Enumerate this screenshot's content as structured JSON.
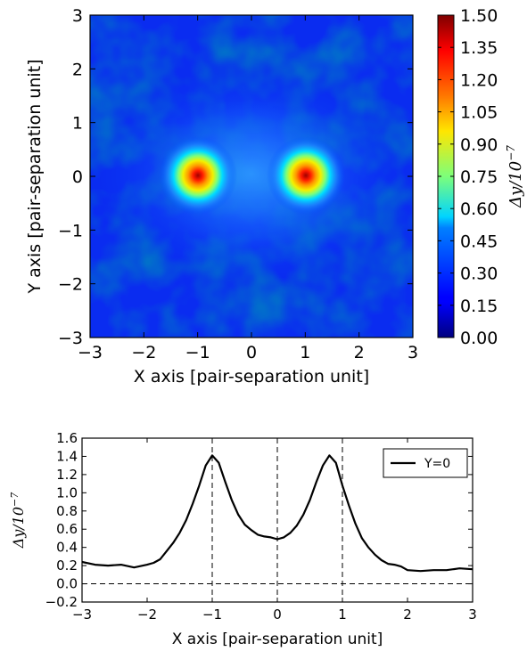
{
  "chart_data": [
    {
      "type": "heatmap",
      "xlabel": "X axis [pair-separation unit]",
      "ylabel": "Y axis [pair-separation unit]",
      "xlim": [
        -3,
        3
      ],
      "ylim": [
        -3,
        3
      ],
      "xticks": [
        "−3",
        "−2",
        "−1",
        "0",
        "1",
        "2",
        "3"
      ],
      "yticks": [
        "−3",
        "−2",
        "−1",
        "0",
        "1",
        "2",
        "3"
      ],
      "colormap": "jet",
      "colorbar": {
        "label_main": "Δy/10",
        "label_exp": "−7",
        "range": [
          0,
          1.5
        ],
        "ticks": [
          "0.00",
          "0.15",
          "0.30",
          "0.45",
          "0.60",
          "0.75",
          "0.90",
          "1.05",
          "1.20",
          "1.35",
          "1.50"
        ]
      },
      "peaks": [
        {
          "x": -1,
          "y": 0,
          "value": 1.45
        },
        {
          "x": 1,
          "y": 0,
          "value": 1.45
        }
      ],
      "background_level": 0.15
    },
    {
      "type": "line",
      "xlabel": "X axis [pair-separation unit]",
      "ylabel_main": "Δy/10",
      "ylabel_exp": "−7",
      "xlim": [
        -3,
        3
      ],
      "ylim": [
        -0.2,
        1.6
      ],
      "xticks": [
        "−3",
        "−2",
        "−1",
        "0",
        "1",
        "2",
        "3"
      ],
      "yticks": [
        "−0.2",
        "0.0",
        "0.2",
        "0.4",
        "0.6",
        "0.8",
        "1.0",
        "1.2",
        "1.4",
        "1.6"
      ],
      "vlines": [
        -1,
        0,
        1
      ],
      "hline": 0,
      "legend": "top-right",
      "series": [
        {
          "name": "Y=0",
          "color": "#000000",
          "x": [
            -3.0,
            -2.8,
            -2.6,
            -2.4,
            -2.2,
            -2.0,
            -1.9,
            -1.8,
            -1.7,
            -1.6,
            -1.5,
            -1.4,
            -1.3,
            -1.2,
            -1.1,
            -1.0,
            -0.9,
            -0.8,
            -0.7,
            -0.6,
            -0.5,
            -0.4,
            -0.3,
            -0.2,
            -0.1,
            0.0,
            0.1,
            0.2,
            0.3,
            0.4,
            0.5,
            0.6,
            0.7,
            0.8,
            0.9,
            1.0,
            1.1,
            1.2,
            1.3,
            1.4,
            1.5,
            1.6,
            1.7,
            1.8,
            1.9,
            2.0,
            2.2,
            2.4,
            2.6,
            2.8,
            3.0
          ],
          "y": [
            0.24,
            0.21,
            0.2,
            0.21,
            0.18,
            0.21,
            0.23,
            0.27,
            0.36,
            0.45,
            0.56,
            0.7,
            0.88,
            1.08,
            1.3,
            1.41,
            1.33,
            1.12,
            0.92,
            0.76,
            0.65,
            0.59,
            0.54,
            0.52,
            0.51,
            0.49,
            0.51,
            0.56,
            0.64,
            0.76,
            0.92,
            1.12,
            1.3,
            1.41,
            1.33,
            1.08,
            0.86,
            0.66,
            0.5,
            0.4,
            0.32,
            0.26,
            0.22,
            0.21,
            0.19,
            0.15,
            0.14,
            0.15,
            0.15,
            0.17,
            0.16
          ]
        }
      ]
    }
  ]
}
